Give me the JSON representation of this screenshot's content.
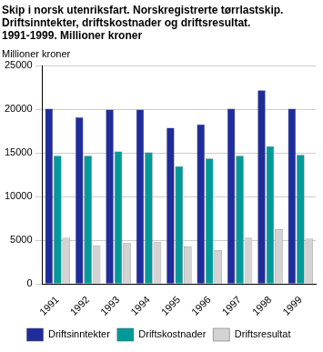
{
  "chart_data": {
    "type": "bar",
    "title": [
      "Skip i norsk utenriksfart. Norskregistrerte tørrlastskip.",
      "Driftsinntekter, driftskostnader og driftsresultat.",
      "1991-1999. Millioner kroner"
    ],
    "y_label": "Millioner kroner",
    "categories": [
      "1991",
      "1992",
      "1993",
      "1994",
      "1995",
      "1996",
      "1997",
      "1998",
      "1999"
    ],
    "series": [
      {
        "name": "Driftsinntekter",
        "color": "#1f2c9c",
        "values": [
          20100,
          19100,
          20000,
          20000,
          17900,
          18300,
          20100,
          22200,
          20100
        ]
      },
      {
        "name": "Driftskostnader",
        "color": "#009a9a",
        "values": [
          14700,
          14700,
          15200,
          15100,
          13500,
          14400,
          14700,
          15800,
          14800
        ]
      },
      {
        "name": "Driftsresultat",
        "color": "#d3d3d3",
        "values": [
          5300,
          4400,
          4700,
          4800,
          4300,
          3900,
          5300,
          6300,
          5200
        ]
      }
    ],
    "ylim": [
      0,
      25000
    ],
    "yticks": [
      0,
      5000,
      10000,
      15000,
      20000,
      25000
    ],
    "grid": true,
    "legend": "bottom"
  }
}
